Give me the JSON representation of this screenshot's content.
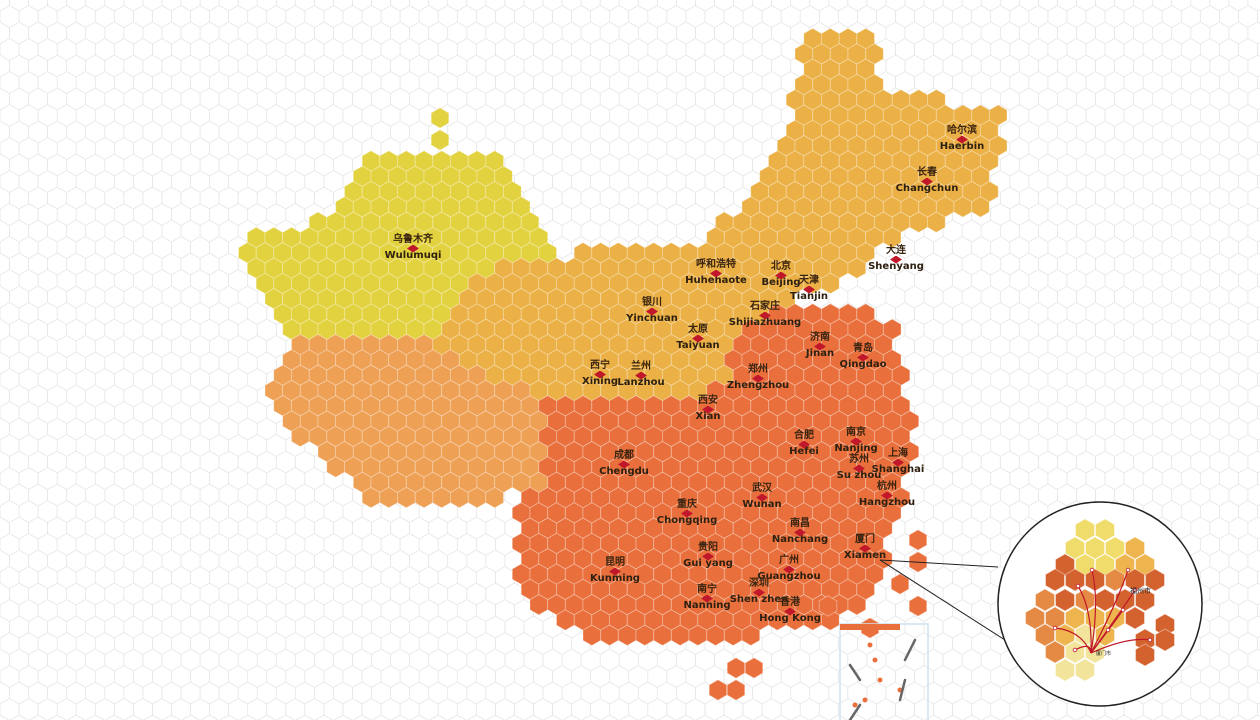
{
  "colors": {
    "northwest": "#e3d23f",
    "southwest": "#eea055",
    "north": "#ebb146",
    "south": "#e9703c",
    "marker": "#c0182a",
    "grid": "#e6e6e6"
  },
  "cities": [
    {
      "cn": "乌鲁木齐",
      "en": "Wulumuqi"
    },
    {
      "cn": "哈尔滨",
      "en": "Haerbin"
    },
    {
      "cn": "长春",
      "en": "Changchun"
    },
    {
      "cn": "大连",
      "en": "Shenyang"
    },
    {
      "cn": "呼和浩特",
      "en": "Huhehaote"
    },
    {
      "cn": "北京",
      "en": "Beijing"
    },
    {
      "cn": "天津",
      "en": "Tianjin"
    },
    {
      "cn": "银川",
      "en": "Yinchuan"
    },
    {
      "cn": "石家庄",
      "en": "Shijiazhuang"
    },
    {
      "cn": "太原",
      "en": "Taiyuan"
    },
    {
      "cn": "济南",
      "en": "Jinan"
    },
    {
      "cn": "青岛",
      "en": "Qingdao"
    },
    {
      "cn": "西宁",
      "en": "Xining"
    },
    {
      "cn": "兰州",
      "en": "Lanzhou"
    },
    {
      "cn": "郑州",
      "en": "Zhengzhou"
    },
    {
      "cn": "西安",
      "en": "Xian"
    },
    {
      "cn": "合肥",
      "en": "Hefei"
    },
    {
      "cn": "南京",
      "en": "Nanjing"
    },
    {
      "cn": "苏州",
      "en": "Su zhou"
    },
    {
      "cn": "上海",
      "en": "Shanghai"
    },
    {
      "cn": "成都",
      "en": "Chengdu"
    },
    {
      "cn": "杭州",
      "en": "Hangzhou"
    },
    {
      "cn": "武汉",
      "en": "Wuhan"
    },
    {
      "cn": "重庆",
      "en": "Chongqing"
    },
    {
      "cn": "南昌",
      "en": "Nanchang"
    },
    {
      "cn": "厦门",
      "en": "Xiamen"
    },
    {
      "cn": "贵阳",
      "en": "Gui yang"
    },
    {
      "cn": "昆明",
      "en": "Kunming"
    },
    {
      "cn": "广州",
      "en": "Guangzhou"
    },
    {
      "cn": "深圳",
      "en": "Shen zhen"
    },
    {
      "cn": "南宁",
      "en": "Nanning"
    },
    {
      "cn": "香港",
      "en": "Hong Kong"
    }
  ],
  "inset": {
    "labels": [
      "福州市",
      "厦门市"
    ],
    "colors": [
      "#f0dc6a",
      "#eeb54e",
      "#e48a45",
      "#d4622f",
      "#f2e49a"
    ]
  }
}
